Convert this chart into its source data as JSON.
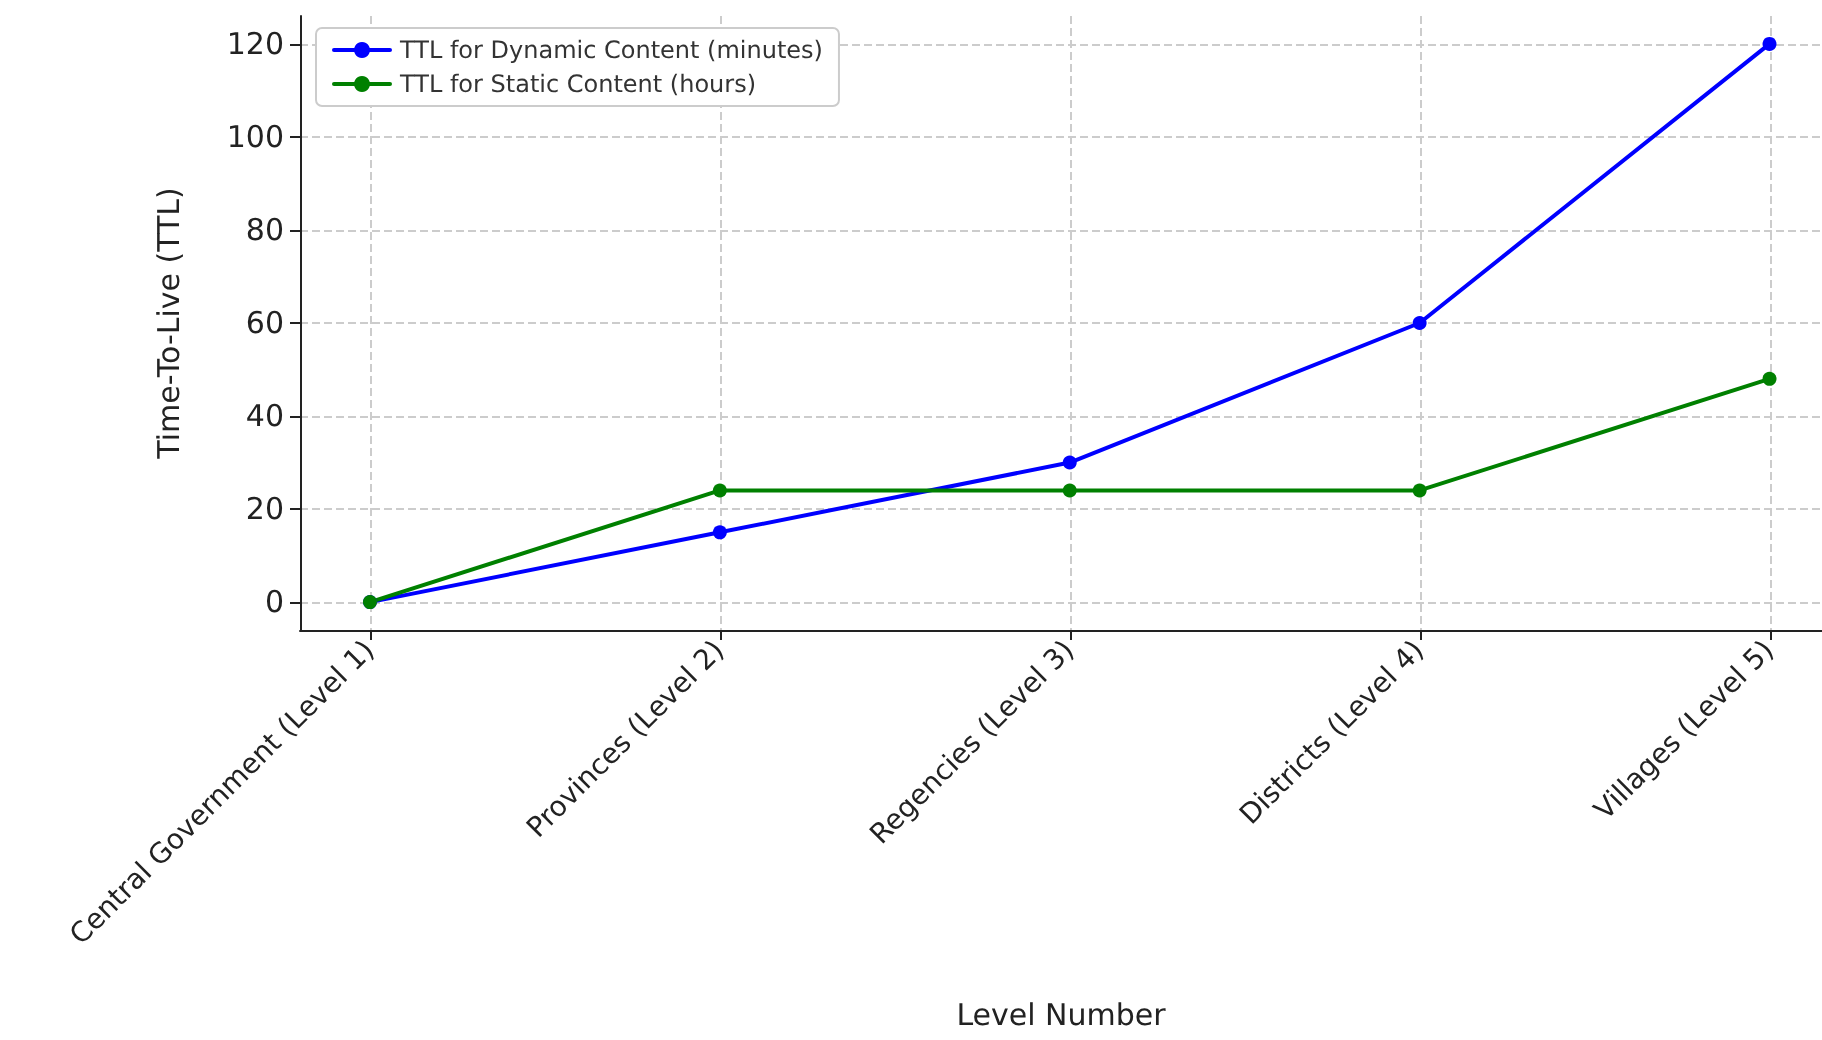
{
  "chart_data": {
    "type": "line",
    "xlabel": "Level Number",
    "ylabel": "Time-To-Live (TTL)",
    "categories": [
      "Central Government (Level 1)",
      "Provinces (Level 2)",
      "Regencies (Level 3)",
      "Districts (Level 4)",
      "Villages (Level 5)"
    ],
    "series": [
      {
        "name": "TTL for Dynamic Content (minutes)",
        "color": "#0000ff",
        "values": [
          0,
          15,
          30,
          60,
          120
        ]
      },
      {
        "name": "TTL for Static Content (hours)",
        "color": "#008000",
        "values": [
          0,
          24,
          24,
          24,
          48
        ]
      }
    ],
    "ylim": [
      -6,
      126
    ],
    "yticks": [
      0,
      20,
      40,
      60,
      80,
      100,
      120
    ],
    "grid": true,
    "legend": "top left",
    "marker": "circle",
    "line_style": "solid"
  }
}
